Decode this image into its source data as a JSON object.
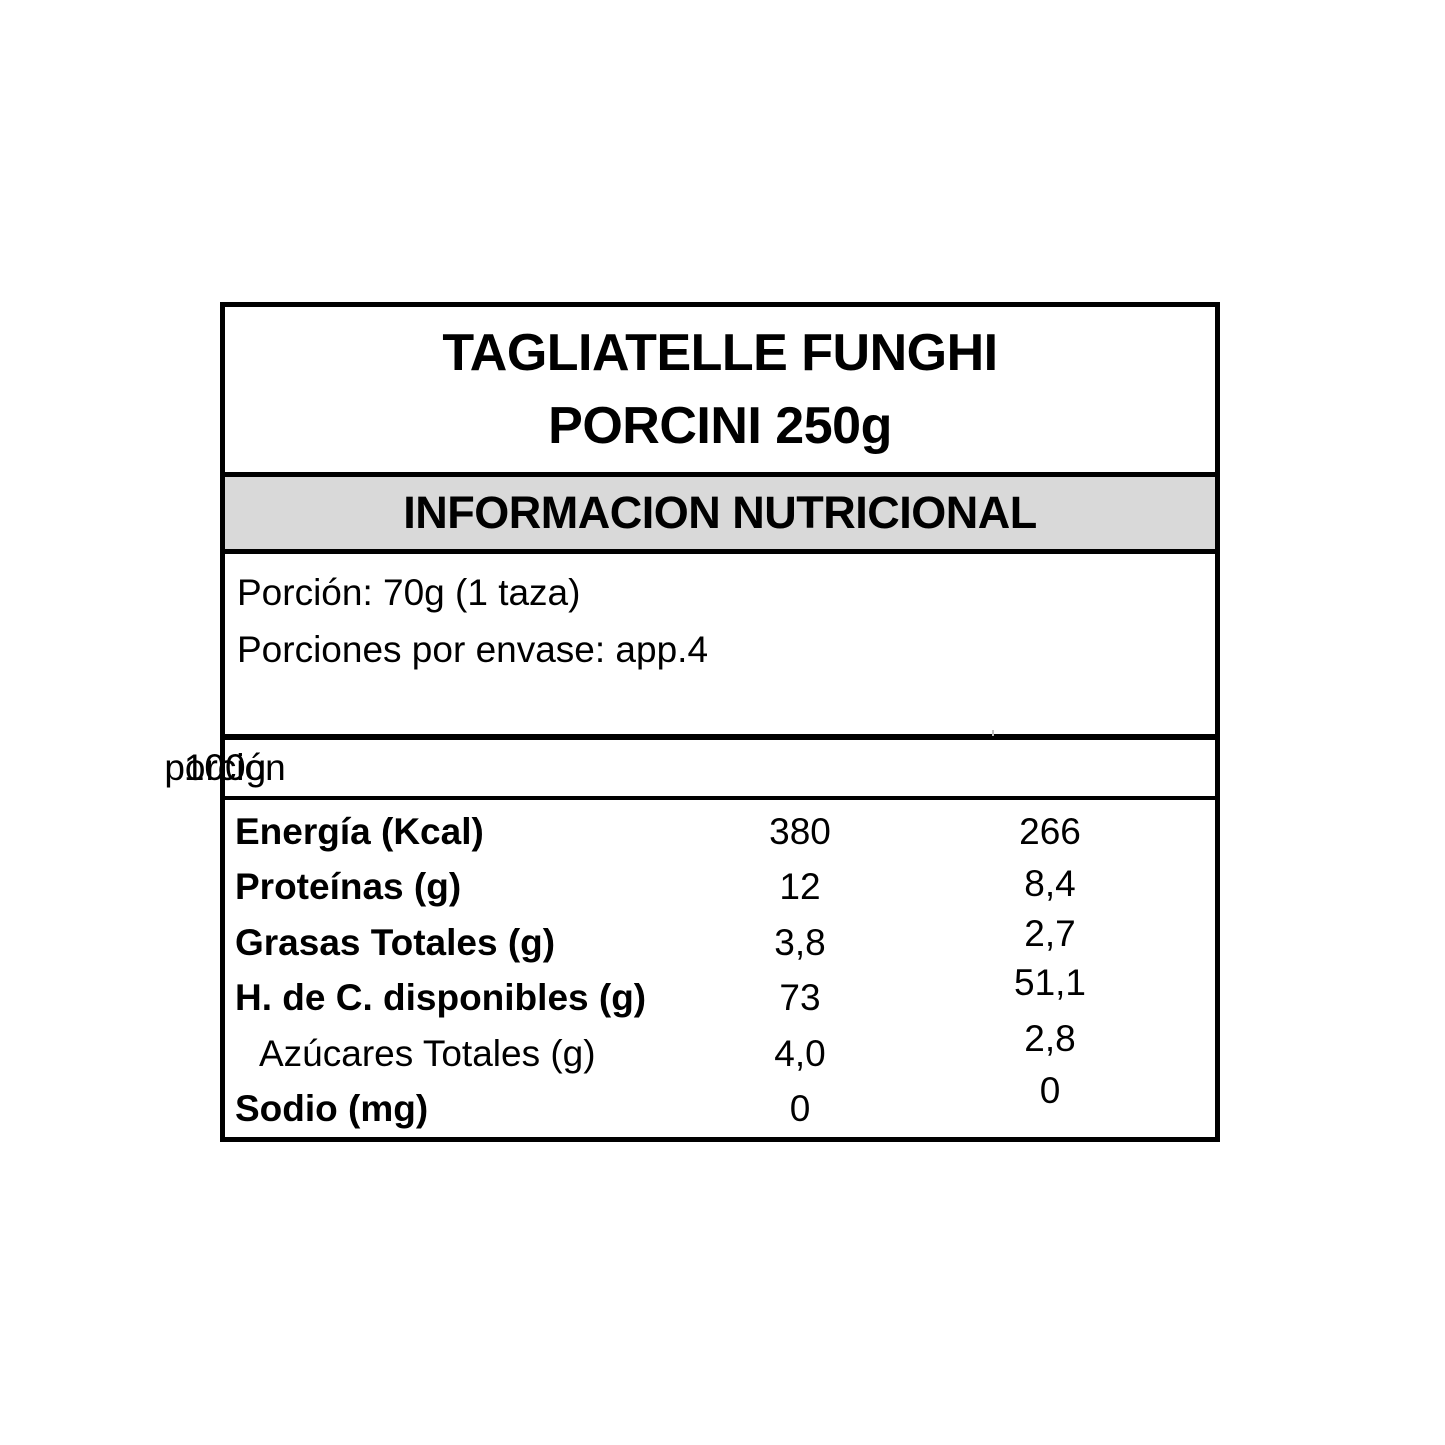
{
  "product": {
    "title_line1": "TAGLIATELLE FUNGHI",
    "title_line2": "PORCINI 250g"
  },
  "banner": {
    "title": "INFORMACION NUTRICIONAL"
  },
  "serving": {
    "portion_line": "Porción: 70g (1 taza)",
    "servings_per_pack_line": "Porciones por envase: app.4"
  },
  "columns": {
    "per_100g_label": "100g",
    "per_portion_label": "porción"
  },
  "nutrients": [
    {
      "label": "Energía (Kcal)",
      "per_100g": "380",
      "per_portion": "266",
      "bold": true,
      "indent": false
    },
    {
      "label": "Proteínas (g)",
      "per_100g": "12",
      "per_portion": "8,4",
      "bold": true,
      "indent": false
    },
    {
      "label": "Grasas Totales (g)",
      "per_100g": "3,8",
      "per_portion": "2,7",
      "bold": true,
      "indent": false
    },
    {
      "label": "H. de C. disponibles (g)",
      "per_100g": "73",
      "per_portion": "51,1",
      "bold": true,
      "indent": false
    },
    {
      "label": "Azúcares Totales (g)",
      "per_100g": "4,0",
      "per_portion": "2,8",
      "bold": false,
      "indent": true
    },
    {
      "label": "Sodio (mg)",
      "per_100g": "0",
      "per_portion": "0",
      "bold": true,
      "indent": false
    }
  ],
  "colors": {
    "border": "#000000",
    "banner_background": "#d9d9d9",
    "text": "#000000",
    "page_background": "#ffffff"
  }
}
